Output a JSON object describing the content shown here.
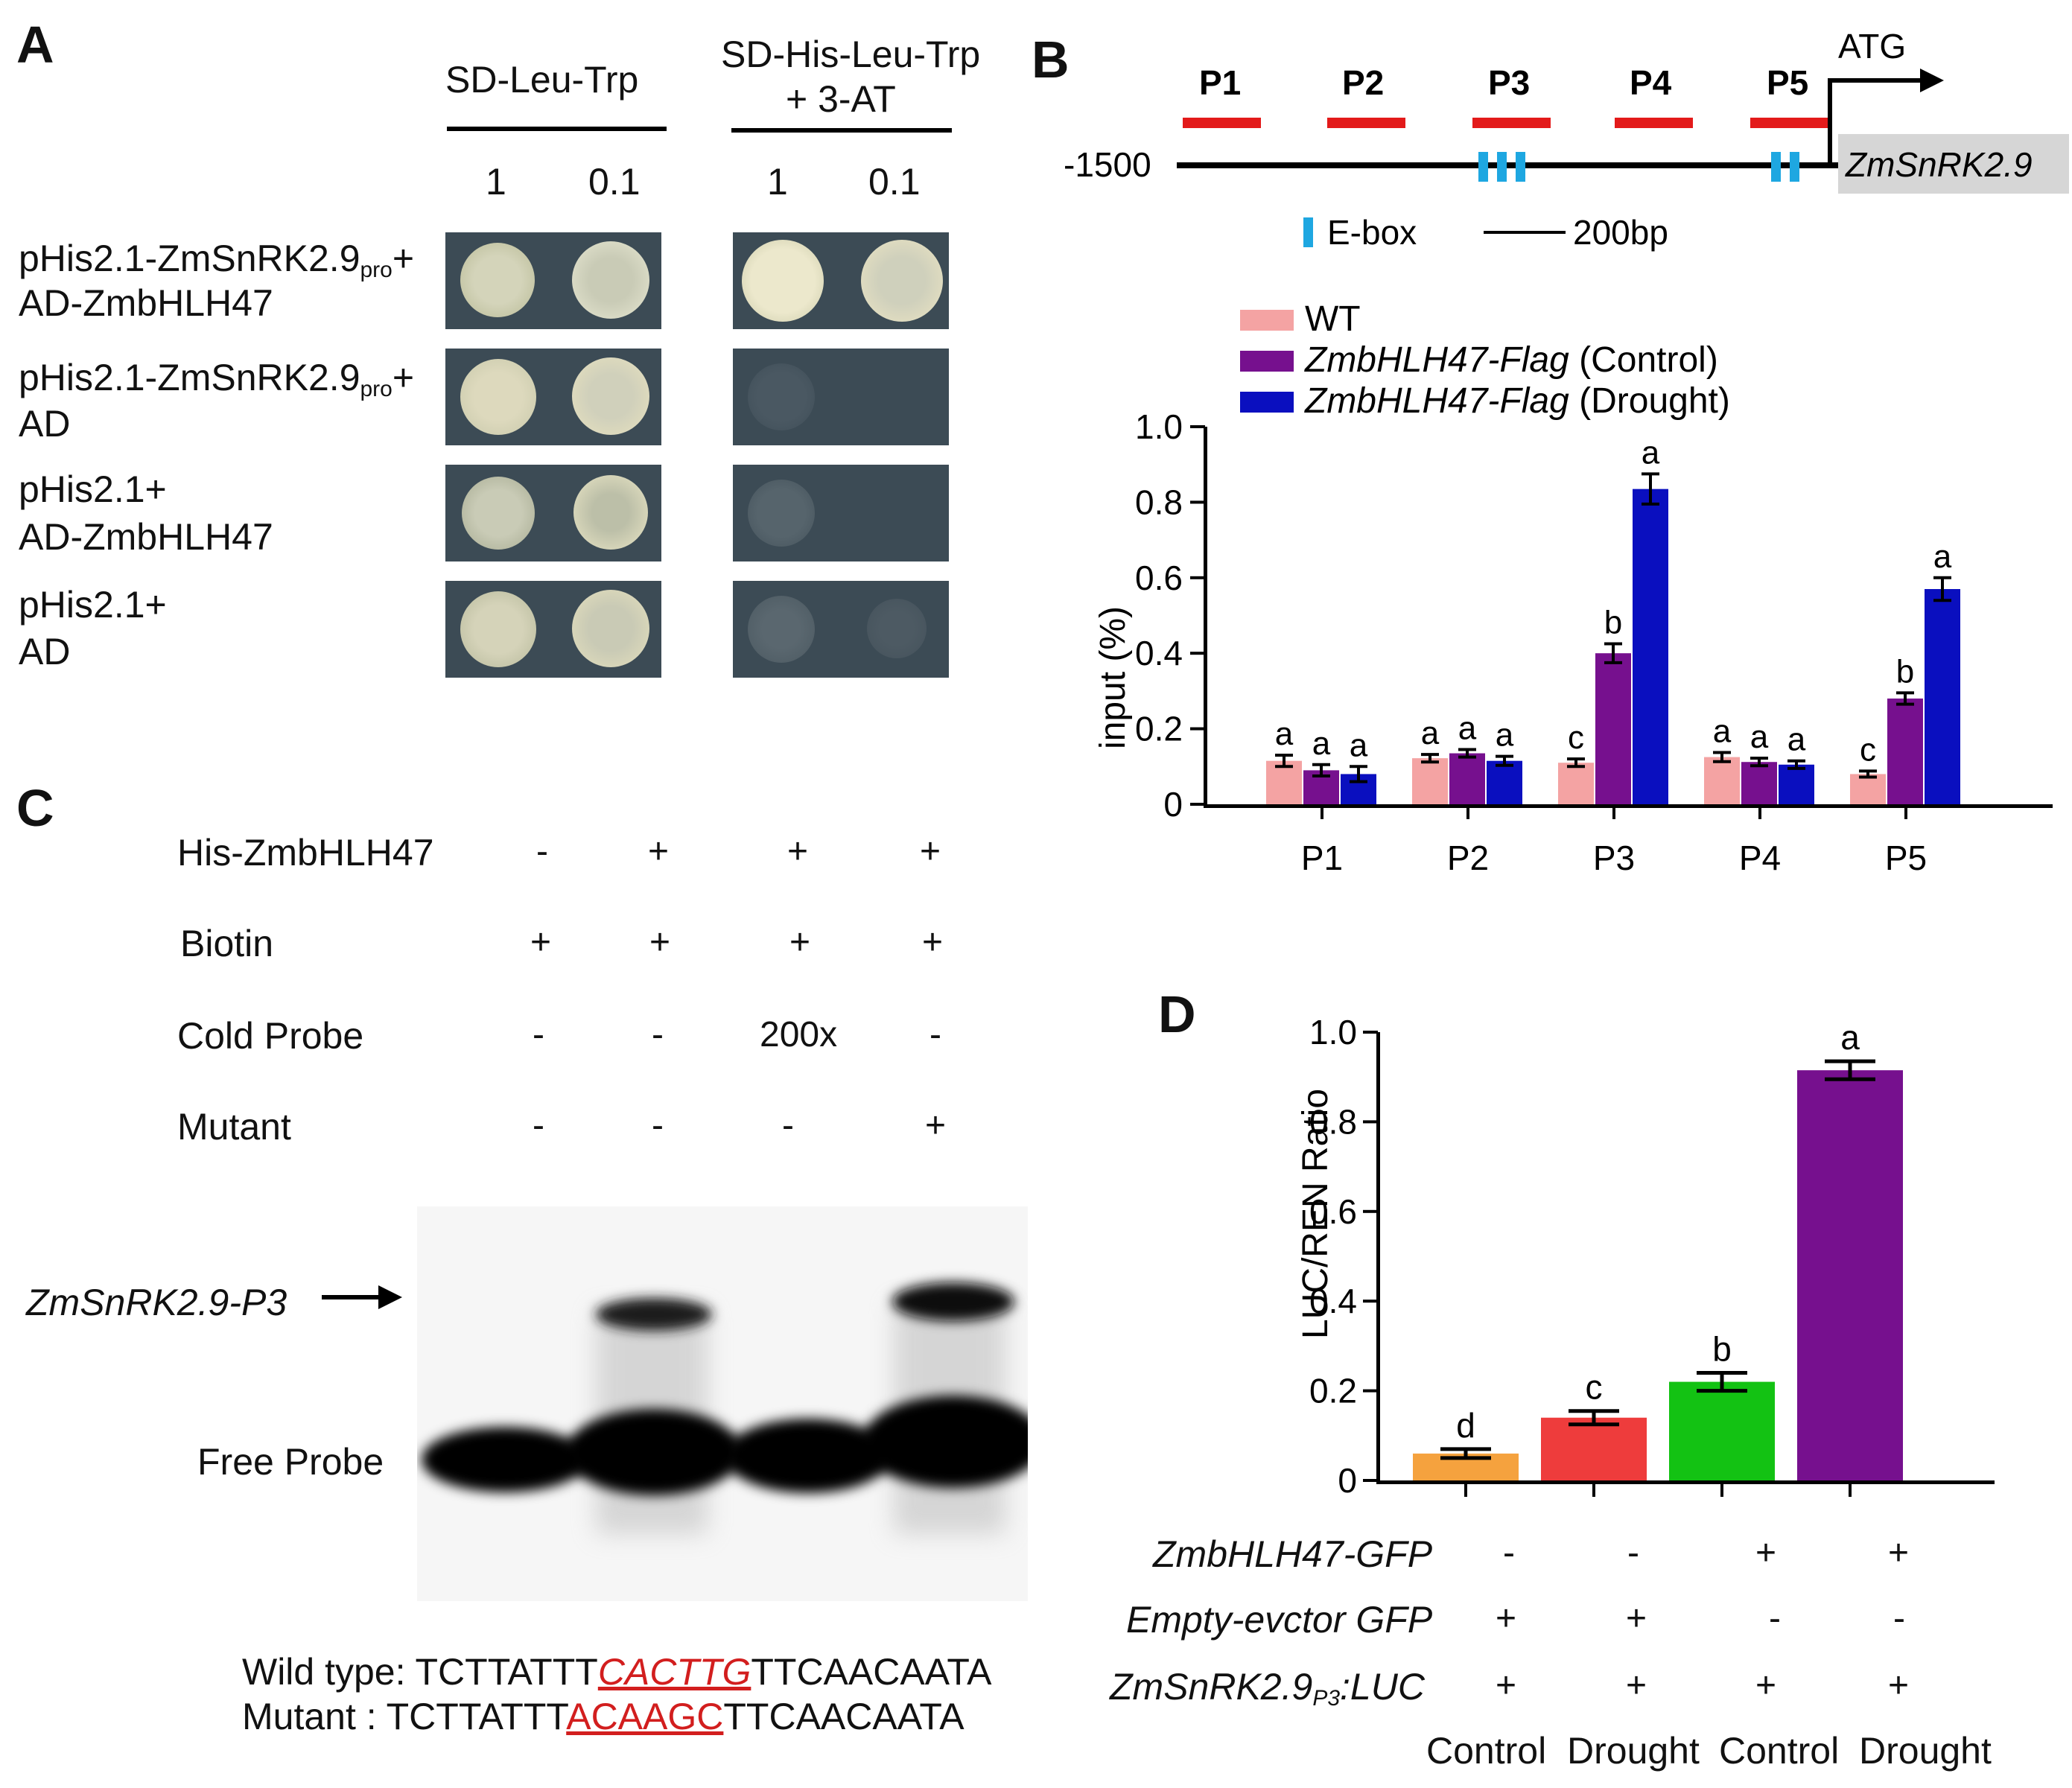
{
  "panels": {
    "a": "A",
    "b": "B",
    "c": "C",
    "d": "D"
  },
  "panel_a": {
    "media1": "SD-Leu-Trp",
    "media2_line1": "SD-His-Leu-Trp",
    "media2_line2": "+ 3-AT",
    "dil1": "1",
    "dil2": "0.1",
    "dil3": "1",
    "dil4": "0.1",
    "rows": [
      {
        "l1": "pHis2.1-ZmSnRK2.9",
        "sub": "pro",
        "plus": "+",
        "l2": "AD-ZmbHLH47"
      },
      {
        "l1": "pHis2.1-ZmSnRK2.9",
        "sub": "pro",
        "plus": "+",
        "l2": "AD"
      },
      {
        "l1": "pHis2.1+",
        "l2": "AD-ZmbHLH47"
      },
      {
        "l1": "pHis2.1+",
        "l2": "AD"
      }
    ]
  },
  "panel_b_map": {
    "start": "-1500",
    "atg": "ATG",
    "gene": "ZmSnRK2.9",
    "fragments": [
      "P1",
      "P2",
      "P3",
      "P4",
      "P5"
    ],
    "ebox_label": "E-box",
    "scale_label": "200bp"
  },
  "panel_c": {
    "rows": [
      {
        "label": "His-ZmbHLH47",
        "signs": [
          "-",
          "+",
          "+",
          "+"
        ]
      },
      {
        "label": "Biotin",
        "signs": [
          "+",
          "+",
          "+",
          "+"
        ]
      },
      {
        "label": "Cold Probe",
        "signs": [
          "-",
          "-",
          "200x",
          "-"
        ]
      },
      {
        "label": "Mutant",
        "signs": [
          "-",
          "-",
          "-",
          "+"
        ]
      }
    ],
    "probe_label": "ZmSnRK2.9-P3",
    "free_probe": "Free Probe",
    "wt_label": "Wild type:",
    "wt_pre": "TCTTATTT",
    "wt_site": "CACTTG",
    "wt_post": "TTCAACAATA",
    "mut_label": "Mutant    :",
    "mut_pre": "TCTTATTT",
    "mut_site": "ACAAGC",
    "mut_post": "TTCAACAATA"
  },
  "panel_d": {
    "rows": [
      {
        "label": "ZmbHLH47-GFP",
        "signs": [
          "-",
          "-",
          "+",
          "+"
        ]
      },
      {
        "label": "Empty-evctor GFP",
        "signs": [
          "+",
          "+",
          "-",
          "-"
        ]
      },
      {
        "label_pre": "ZmSnRK2.9",
        "label_sub": "P3",
        "label_post": ":LUC",
        "signs": [
          "+",
          "+",
          "+",
          "+"
        ]
      }
    ],
    "conditions": [
      "Control",
      "Drought",
      "Control",
      "Drought"
    ]
  },
  "colors": {
    "wt": "#f4a3a3",
    "control": "#76108e",
    "drought": "#0a0fbf",
    "d_bars": [
      "#f5a23e",
      "#ee3c3c",
      "#13c213",
      "#76108e"
    ],
    "red": "#e31a1a",
    "ebox": "#1ea7e1"
  },
  "chart_data": [
    {
      "type": "bar",
      "title": "",
      "xlabel": "",
      "ylabel": "input (%)",
      "ylim": [
        0,
        1.0
      ],
      "yticks": [
        "0",
        "0.2",
        "0.4",
        "0.6",
        "0.8",
        "1.0"
      ],
      "categories": [
        "P1",
        "P2",
        "P3",
        "P4",
        "P5"
      ],
      "series": [
        {
          "name": "WT",
          "values": [
            0.115,
            0.122,
            0.11,
            0.125,
            0.08
          ],
          "errors": [
            0.015,
            0.01,
            0.01,
            0.012,
            0.008
          ],
          "letters": [
            "a",
            "a",
            "c",
            "a",
            "c"
          ]
        },
        {
          "name": "ZmbHLH47-Flag (Control)",
          "values": [
            0.09,
            0.135,
            0.4,
            0.112,
            0.28
          ],
          "errors": [
            0.015,
            0.01,
            0.025,
            0.01,
            0.015
          ],
          "letters": [
            "a",
            "a",
            "b",
            "a",
            "b"
          ]
        },
        {
          "name": "ZmbHLH47-Flag (Drought)",
          "values": [
            0.08,
            0.115,
            0.835,
            0.105,
            0.57
          ],
          "errors": [
            0.02,
            0.012,
            0.04,
            0.01,
            0.03
          ],
          "letters": [
            "a",
            "a",
            "a",
            "a",
            "a"
          ]
        }
      ],
      "legend": [
        {
          "pre": "",
          "ital": "",
          "post": "WT"
        },
        {
          "pre": "",
          "ital": "ZmbHLH47-Flag",
          "post": " (Control)"
        },
        {
          "pre": "",
          "ital": "ZmbHLH47-Flag",
          "post": " (Drought)"
        }
      ]
    },
    {
      "type": "bar",
      "title": "",
      "xlabel": "",
      "ylabel": "LUC/REN Ratio",
      "ylim": [
        0,
        1.0
      ],
      "yticks": [
        "0",
        "0.2",
        "0.4",
        "0.6",
        "0.8",
        "1.0"
      ],
      "categories": [
        "Control",
        "Drought",
        "Control",
        "Drought"
      ],
      "values": [
        0.06,
        0.14,
        0.22,
        0.915
      ],
      "errors": [
        0.01,
        0.015,
        0.02,
        0.02
      ],
      "letters": [
        "d",
        "c",
        "b",
        "a"
      ]
    }
  ]
}
